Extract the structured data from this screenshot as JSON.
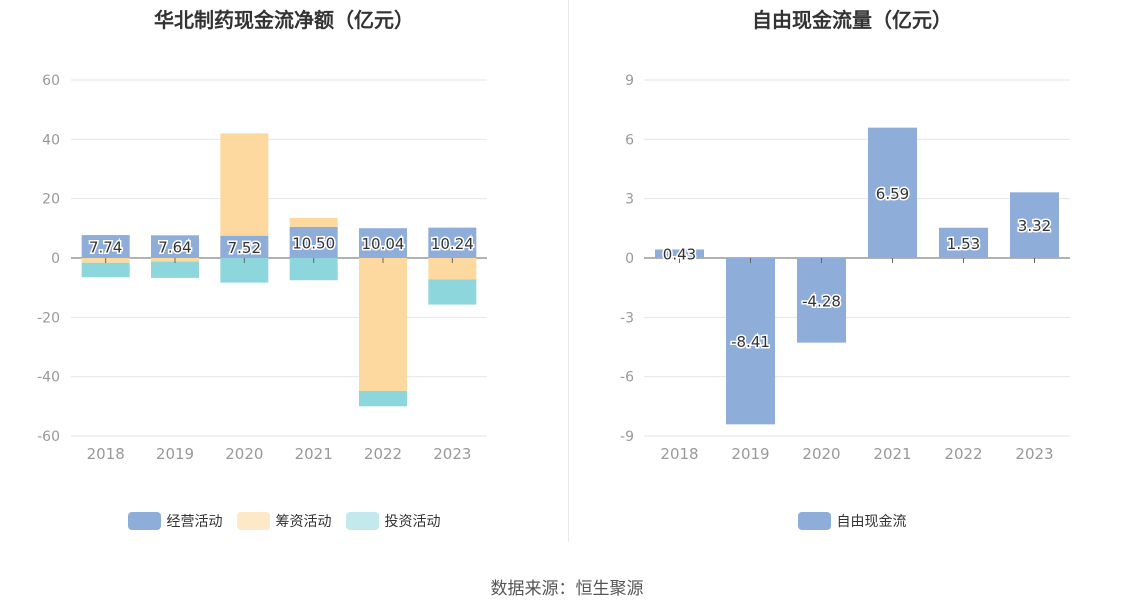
{
  "source_text": "数据来源：恒生聚源",
  "chart_data": [
    {
      "type": "bar",
      "stacked": true,
      "title": "华北制药现金流净额（亿元）",
      "categories": [
        "2018",
        "2019",
        "2020",
        "2021",
        "2022",
        "2023"
      ],
      "ylim": [
        -60,
        60
      ],
      "yticks": [
        60,
        40,
        20,
        0,
        -20,
        -40,
        -60
      ],
      "grid": true,
      "legend_position": "bottom",
      "series": [
        {
          "name": "经营活动",
          "color": "#8eadd8",
          "values": [
            7.74,
            7.64,
            7.52,
            10.5,
            10.04,
            10.24
          ],
          "show_labels": true
        },
        {
          "name": "筹资活动",
          "color": "#fdd9a0",
          "values": [
            -1.6,
            -1.2,
            34.5,
            3.0,
            -44.8,
            -7.2
          ],
          "show_labels": false
        },
        {
          "name": "投资活动",
          "color": "#8cd6dc",
          "values": [
            -4.9,
            -5.5,
            -8.3,
            -7.5,
            -5.2,
            -8.5
          ],
          "show_labels": false
        }
      ],
      "legend_colors": [
        "#8eadd8",
        "#fde8c8",
        "#c3e9ec"
      ]
    },
    {
      "type": "bar",
      "title": "自由现金流量（亿元）",
      "categories": [
        "2018",
        "2019",
        "2020",
        "2021",
        "2022",
        "2023"
      ],
      "ylim": [
        -9,
        9
      ],
      "yticks": [
        9,
        6,
        3,
        0,
        -3,
        -6,
        -9
      ],
      "grid": true,
      "legend_position": "bottom",
      "series": [
        {
          "name": "自由现金流",
          "color": "#8eadd8",
          "values": [
            0.43,
            -8.41,
            -4.28,
            6.59,
            1.53,
            3.32
          ],
          "show_labels": true
        }
      ],
      "legend_colors": [
        "#8eadd8"
      ]
    }
  ]
}
